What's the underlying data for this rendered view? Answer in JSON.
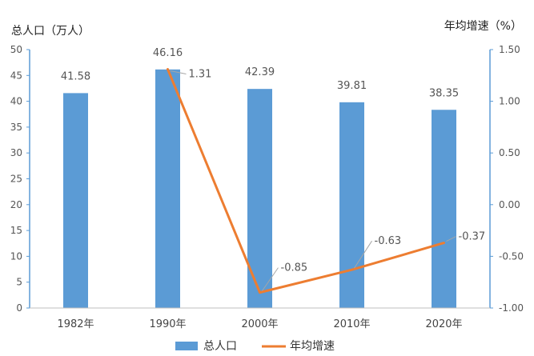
{
  "chart_data": {
    "type": "bar+line",
    "categories": [
      "1982年",
      "1990年",
      "2000年",
      "2010年",
      "2020年"
    ],
    "series": [
      {
        "name": "总人口",
        "type": "bar",
        "axis": "left",
        "values": [
          41.58,
          46.16,
          42.39,
          39.81,
          38.35
        ],
        "color": "#5b9bd5"
      },
      {
        "name": "年均增速",
        "type": "line",
        "axis": "right",
        "values": [
          null,
          1.31,
          -0.85,
          -0.63,
          -0.37
        ],
        "color": "#ed7d31"
      }
    ],
    "left_axis": {
      "label": "总人口（万人）",
      "ylim": [
        0,
        50
      ],
      "ticks": [
        "0",
        "5",
        "10",
        "15",
        "20",
        "25",
        "30",
        "35",
        "40",
        "45",
        "50"
      ]
    },
    "right_axis": {
      "label": "年均增速（%）",
      "ylim": [
        -1.0,
        1.5
      ],
      "ticks": [
        "-1.00",
        "-0.50",
        "0.00",
        "0.50",
        "1.00",
        "1.50"
      ]
    },
    "bar_labels": [
      "41.58",
      "46.16",
      "42.39",
      "39.81",
      "38.35"
    ],
    "line_labels": [
      "",
      "1.31",
      "-0.85",
      "-0.63",
      "-0.37"
    ],
    "legend": {
      "position": "bottom",
      "items": [
        "总人口",
        "年均增速"
      ]
    },
    "grid": false
  }
}
